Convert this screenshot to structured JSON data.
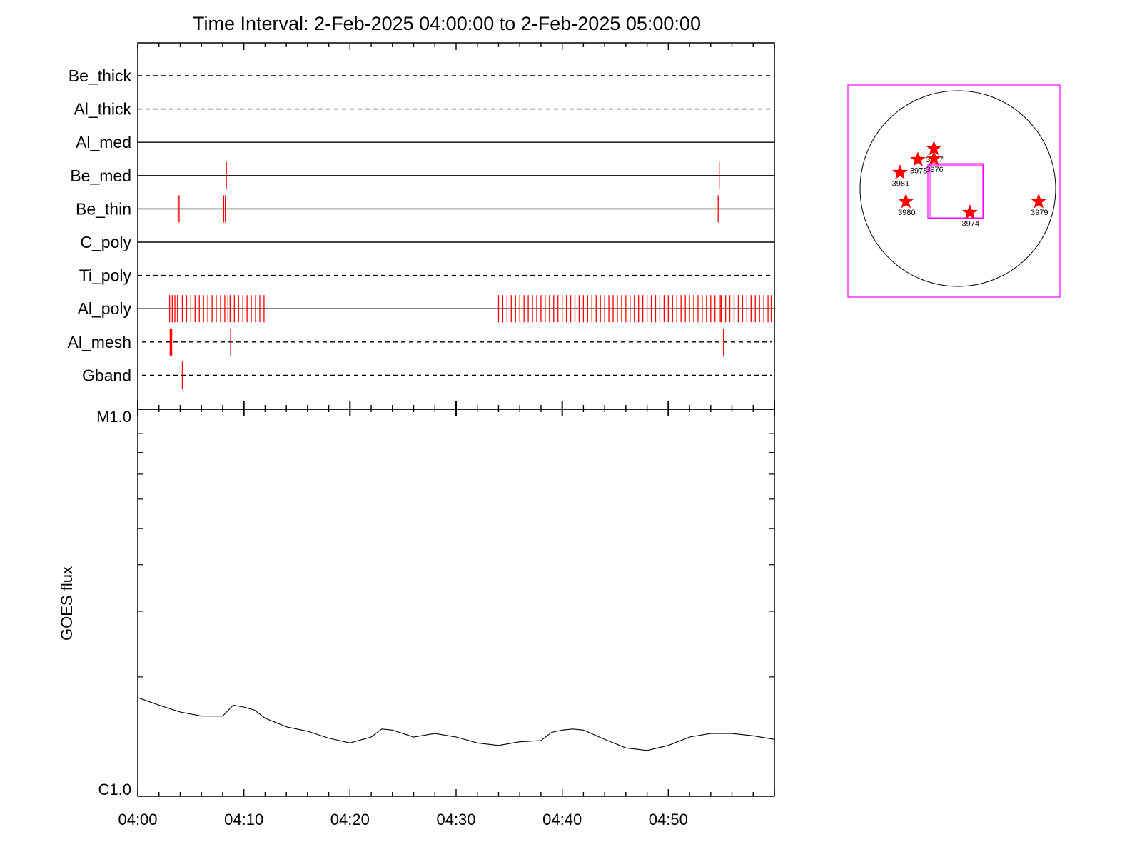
{
  "chart_data": [
    {
      "type": "timeline",
      "title": "Time Interval:  2-Feb-2025 04:00:00 to  2-Feb-2025 05:00:00",
      "x_range_minutes": [
        0,
        60
      ],
      "rows": [
        {
          "name": "Be_thick",
          "style": "dashed",
          "events": []
        },
        {
          "name": "Al_thick",
          "style": "dashed",
          "events": []
        },
        {
          "name": "Al_med",
          "style": "solid",
          "events": []
        },
        {
          "name": "Be_med",
          "style": "solid",
          "events": [
            8.35,
            54.8
          ]
        },
        {
          "name": "Be_thin",
          "style": "solid",
          "events": [
            3.8,
            3.9,
            8.1,
            8.25,
            54.7
          ]
        },
        {
          "name": "C_poly",
          "style": "solid",
          "events": []
        },
        {
          "name": "Ti_poly",
          "style": "dashed",
          "events": []
        },
        {
          "name": "Al_poly",
          "style": "solid",
          "events": [
            3.0,
            3.25,
            3.5,
            3.75,
            4.2,
            4.6,
            5.0,
            5.4,
            5.8,
            6.2,
            6.6,
            7.0,
            7.4,
            7.8,
            8.2,
            8.5,
            8.7,
            9.1,
            9.5,
            9.9,
            10.3,
            10.7,
            11.1,
            11.5,
            11.9,
            34.0,
            34.4,
            34.8,
            35.2,
            35.6,
            36.0,
            36.4,
            36.8,
            37.2,
            37.6,
            38.0,
            38.4,
            38.8,
            39.2,
            39.6,
            40.0,
            40.4,
            40.8,
            41.2,
            41.6,
            42.0,
            42.4,
            42.8,
            43.2,
            43.6,
            44.0,
            44.4,
            44.8,
            45.2,
            45.6,
            46.0,
            46.4,
            46.8,
            47.2,
            47.6,
            48.0,
            48.4,
            48.8,
            49.2,
            49.6,
            50.0,
            50.4,
            50.8,
            51.2,
            51.6,
            52.0,
            52.4,
            52.8,
            53.2,
            53.6,
            54.0,
            54.4,
            54.9,
            55.0,
            55.4,
            55.8,
            56.2,
            56.6,
            57.0,
            57.4,
            57.8,
            58.2,
            58.6,
            59.0,
            59.4,
            59.7
          ]
        },
        {
          "name": "Al_mesh",
          "style": "dashed",
          "events": [
            3.05,
            3.2,
            8.75,
            55.2
          ]
        },
        {
          "name": "Gband",
          "style": "dashed",
          "events": [
            4.2
          ]
        }
      ]
    },
    {
      "type": "line",
      "ylabel": "GOES flux",
      "x_tick_labels": [
        "04:00",
        "04:10",
        "04:20",
        "04:30",
        "04:40",
        "04:50"
      ],
      "x_ticks_minutes": [
        0,
        10,
        20,
        30,
        40,
        50
      ],
      "y_tick_labels": [
        "M1.0",
        "C1.0"
      ],
      "ylim_log_wm2": [
        -6,
        -5
      ],
      "x": [
        0,
        2,
        4,
        6,
        8,
        9,
        10,
        11,
        12,
        14,
        16,
        18,
        20,
        22,
        23,
        24,
        26,
        28,
        30,
        32,
        34,
        36,
        38,
        39,
        40,
        41,
        42,
        44,
        46,
        48,
        50,
        52,
        54,
        56,
        58,
        60
      ],
      "y": [
        1.76e-06,
        1.68e-06,
        1.61e-06,
        1.57e-06,
        1.57e-06,
        1.68e-06,
        1.66e-06,
        1.63e-06,
        1.55e-06,
        1.47e-06,
        1.43e-06,
        1.37e-06,
        1.33e-06,
        1.38e-06,
        1.45e-06,
        1.44e-06,
        1.38e-06,
        1.41e-06,
        1.38e-06,
        1.33e-06,
        1.31e-06,
        1.34e-06,
        1.35e-06,
        1.42e-06,
        1.44e-06,
        1.45e-06,
        1.44e-06,
        1.36e-06,
        1.29e-06,
        1.27e-06,
        1.31e-06,
        1.38e-06,
        1.41e-06,
        1.41e-06,
        1.39e-06,
        1.36e-06
      ]
    },
    {
      "type": "scatter",
      "regions": [
        {
          "label": "3977",
          "x": -240,
          "y": 400
        },
        {
          "label": "3976",
          "x": -240,
          "y": 300
        },
        {
          "label": "3978",
          "x": -400,
          "y": 290
        },
        {
          "label": "3981",
          "x": -580,
          "y": 160
        },
        {
          "label": "3980",
          "x": -520,
          "y": -130
        },
        {
          "label": "3974",
          "x": 120,
          "y": -240
        },
        {
          "label": "3979",
          "x": 810,
          "y": -130
        }
      ]
    }
  ],
  "colors": {
    "event": "#ff0000",
    "frame": "#ff00ff",
    "line": "#000000"
  }
}
